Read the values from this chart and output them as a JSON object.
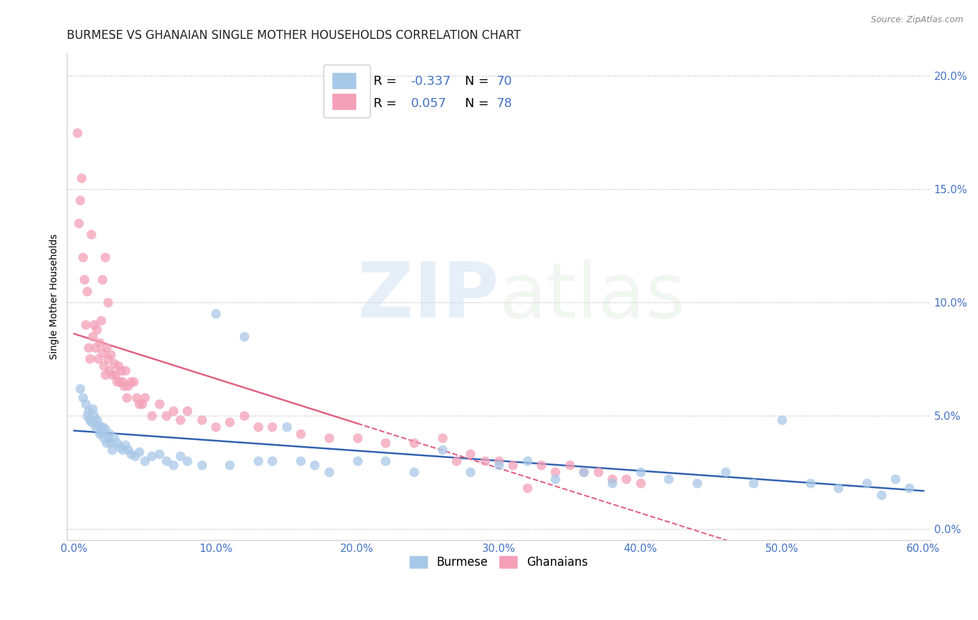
{
  "title": "BURMESE VS GHANAIAN SINGLE MOTHER HOUSEHOLDS CORRELATION CHART",
  "source_text": "Source: ZipAtlas.com",
  "ylabel": "Single Mother Households",
  "xlim": [
    -0.005,
    0.605
  ],
  "ylim": [
    -0.005,
    0.21
  ],
  "x_ticks": [
    0.0,
    0.1,
    0.2,
    0.3,
    0.4,
    0.5,
    0.6
  ],
  "x_tick_labels": [
    "0.0%",
    "10.0%",
    "20.0%",
    "30.0%",
    "40.0%",
    "50.0%",
    "60.0%"
  ],
  "y_ticks": [
    0.0,
    0.05,
    0.1,
    0.15,
    0.2
  ],
  "y_tick_labels": [
    "0.0%",
    "5.0%",
    "10.0%",
    "15.0%",
    "20.0%"
  ],
  "burmese_R": -0.337,
  "burmese_N": 70,
  "ghanaian_R": 0.057,
  "ghanaian_N": 78,
  "burmese_color": "#a8c8e8",
  "ghanaian_color": "#f4a0b8",
  "burmese_line_color": "#3060b0",
  "ghanaian_line_color": "#e06080",
  "watermark_zip": "ZIP",
  "watermark_atlas": "atlas",
  "title_fontsize": 12,
  "label_fontsize": 10,
  "tick_fontsize": 11,
  "legend_fontsize": 13,
  "burmese_x": [
    0.004,
    0.006,
    0.008,
    0.009,
    0.01,
    0.011,
    0.012,
    0.013,
    0.014,
    0.015,
    0.016,
    0.017,
    0.018,
    0.019,
    0.02,
    0.021,
    0.022,
    0.023,
    0.024,
    0.025,
    0.026,
    0.027,
    0.028,
    0.03,
    0.032,
    0.034,
    0.036,
    0.038,
    0.04,
    0.043,
    0.046,
    0.05,
    0.055,
    0.06,
    0.065,
    0.07,
    0.075,
    0.08,
    0.09,
    0.1,
    0.11,
    0.12,
    0.13,
    0.14,
    0.15,
    0.16,
    0.17,
    0.18,
    0.2,
    0.22,
    0.24,
    0.26,
    0.28,
    0.3,
    0.32,
    0.34,
    0.36,
    0.38,
    0.4,
    0.42,
    0.44,
    0.46,
    0.48,
    0.5,
    0.52,
    0.54,
    0.56,
    0.57,
    0.58,
    0.59
  ],
  "burmese_y": [
    0.062,
    0.058,
    0.055,
    0.05,
    0.052,
    0.048,
    0.047,
    0.053,
    0.05,
    0.045,
    0.048,
    0.046,
    0.042,
    0.043,
    0.045,
    0.04,
    0.044,
    0.038,
    0.04,
    0.042,
    0.038,
    0.035,
    0.04,
    0.038,
    0.036,
    0.035,
    0.037,
    0.035,
    0.033,
    0.032,
    0.034,
    0.03,
    0.032,
    0.033,
    0.03,
    0.028,
    0.032,
    0.03,
    0.028,
    0.095,
    0.028,
    0.085,
    0.03,
    0.03,
    0.045,
    0.03,
    0.028,
    0.025,
    0.03,
    0.03,
    0.025,
    0.035,
    0.025,
    0.028,
    0.03,
    0.022,
    0.025,
    0.02,
    0.025,
    0.022,
    0.02,
    0.025,
    0.02,
    0.048,
    0.02,
    0.018,
    0.02,
    0.015,
    0.022,
    0.018
  ],
  "ghanaian_x": [
    0.002,
    0.003,
    0.004,
    0.005,
    0.006,
    0.007,
    0.008,
    0.009,
    0.01,
    0.011,
    0.012,
    0.013,
    0.014,
    0.015,
    0.016,
    0.017,
    0.018,
    0.019,
    0.02,
    0.021,
    0.022,
    0.023,
    0.024,
    0.025,
    0.026,
    0.027,
    0.028,
    0.029,
    0.03,
    0.031,
    0.032,
    0.033,
    0.034,
    0.035,
    0.036,
    0.037,
    0.038,
    0.04,
    0.042,
    0.044,
    0.046,
    0.048,
    0.05,
    0.055,
    0.06,
    0.065,
    0.07,
    0.075,
    0.08,
    0.09,
    0.1,
    0.11,
    0.12,
    0.13,
    0.14,
    0.16,
    0.18,
    0.2,
    0.22,
    0.24,
    0.26,
    0.27,
    0.28,
    0.29,
    0.3,
    0.31,
    0.32,
    0.33,
    0.34,
    0.35,
    0.36,
    0.37,
    0.38,
    0.39,
    0.4,
    0.02,
    0.022,
    0.024
  ],
  "ghanaian_y": [
    0.175,
    0.135,
    0.145,
    0.155,
    0.12,
    0.11,
    0.09,
    0.105,
    0.08,
    0.075,
    0.13,
    0.085,
    0.09,
    0.08,
    0.088,
    0.075,
    0.082,
    0.092,
    0.078,
    0.072,
    0.068,
    0.08,
    0.075,
    0.07,
    0.077,
    0.068,
    0.073,
    0.068,
    0.065,
    0.072,
    0.065,
    0.07,
    0.065,
    0.063,
    0.07,
    0.058,
    0.063,
    0.065,
    0.065,
    0.058,
    0.055,
    0.055,
    0.058,
    0.05,
    0.055,
    0.05,
    0.052,
    0.048,
    0.052,
    0.048,
    0.045,
    0.047,
    0.05,
    0.045,
    0.045,
    0.042,
    0.04,
    0.04,
    0.038,
    0.038,
    0.04,
    0.03,
    0.033,
    0.03,
    0.03,
    0.028,
    0.018,
    0.028,
    0.025,
    0.028,
    0.025,
    0.025,
    0.022,
    0.022,
    0.02,
    0.11,
    0.12,
    0.1
  ]
}
